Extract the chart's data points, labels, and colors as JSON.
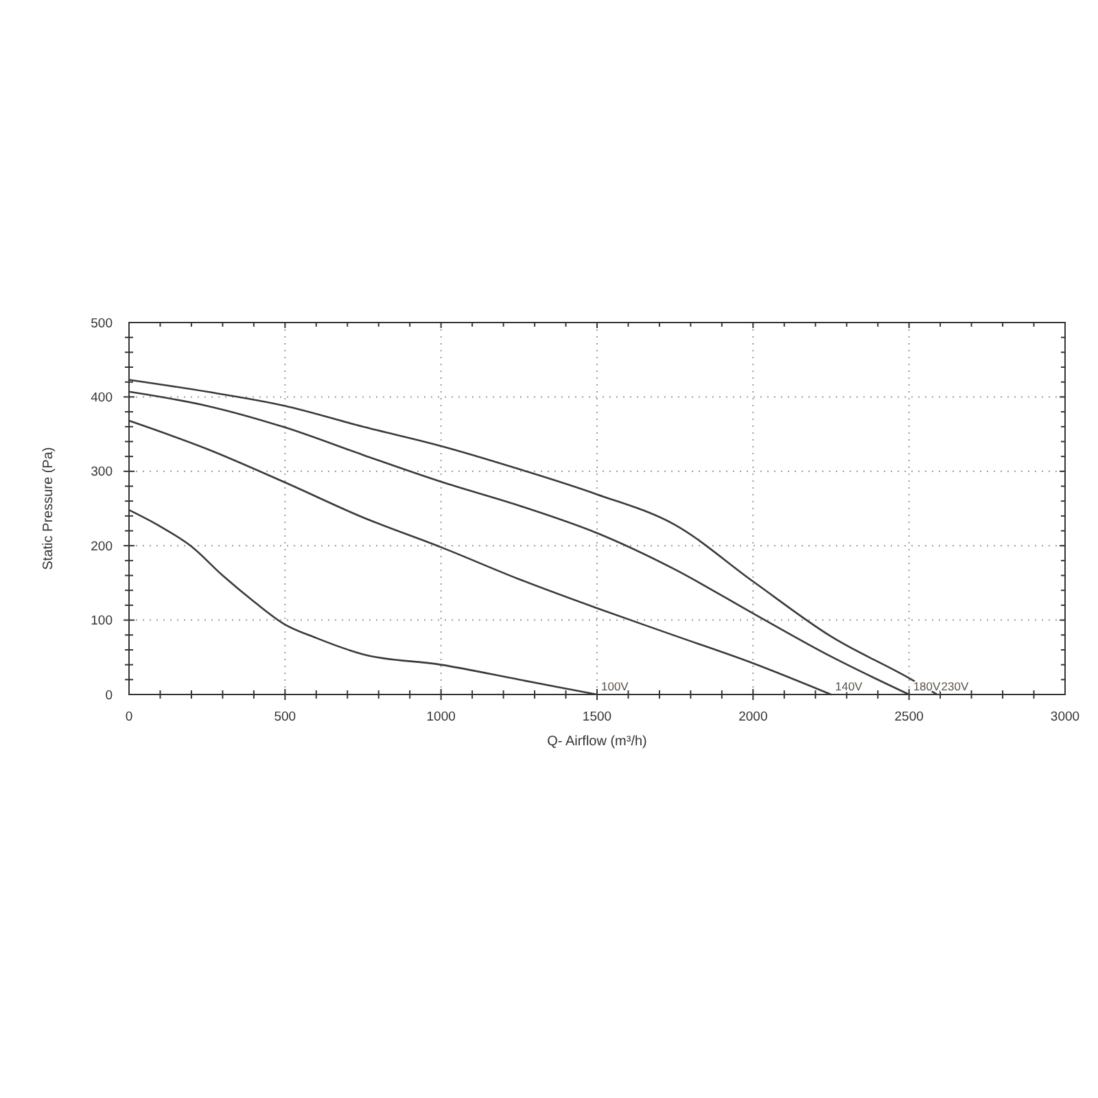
{
  "chart_data": {
    "type": "line",
    "xlabel": "Q- Airflow (m³/h)",
    "ylabel": "Static Pressure (Pa)",
    "xlim": [
      0,
      3000
    ],
    "ylim": [
      0,
      500
    ],
    "xticks": [
      0,
      {
        "value": 100,
        "label": null
      },
      {
        "value": 200,
        "label": null
      },
      {
        "value": 300,
        "label": null
      },
      {
        "value": 400,
        "label": null
      },
      500,
      {
        "value": 600,
        "label": null
      },
      {
        "value": 700,
        "label": null
      },
      {
        "value": 800,
        "label": null
      },
      {
        "value": 900,
        "label": null
      },
      1000,
      {
        "value": 1100,
        "label": null
      },
      {
        "value": 1200,
        "label": null
      },
      {
        "value": 1300,
        "label": null
      },
      {
        "value": 1400,
        "label": null
      },
      1500,
      {
        "value": 1600,
        "label": null
      },
      {
        "value": 1700,
        "label": null
      },
      {
        "value": 1800,
        "label": null
      },
      {
        "value": 1900,
        "label": null
      },
      2000,
      {
        "value": 2100,
        "label": null
      },
      {
        "value": 2200,
        "label": null
      },
      {
        "value": 2300,
        "label": null
      },
      {
        "value": 2400,
        "label": null
      },
      2500,
      {
        "value": 2600,
        "label": null
      },
      {
        "value": 2700,
        "label": null
      },
      {
        "value": 2800,
        "label": null
      },
      {
        "value": 2900,
        "label": null
      },
      3000
    ],
    "yticks": [
      0,
      {
        "value": 20,
        "label": null
      },
      {
        "value": 40,
        "label": null
      },
      {
        "value": 60,
        "label": null
      },
      {
        "value": 80,
        "label": null
      },
      100,
      {
        "value": 120,
        "label": null
      },
      {
        "value": 140,
        "label": null
      },
      {
        "value": 160,
        "label": null
      },
      {
        "value": 180,
        "label": null
      },
      200,
      {
        "value": 220,
        "label": null
      },
      {
        "value": 240,
        "label": null
      },
      {
        "value": 260,
        "label": null
      },
      {
        "value": 280,
        "label": null
      },
      300,
      {
        "value": 320,
        "label": null
      },
      {
        "value": 340,
        "label": null
      },
      {
        "value": 360,
        "label": null
      },
      {
        "value": 380,
        "label": null
      },
      400,
      {
        "value": 420,
        "label": null
      },
      {
        "value": 440,
        "label": null
      },
      {
        "value": 460,
        "label": null
      },
      {
        "value": 480,
        "label": null
      },
      500
    ],
    "grid": true,
    "line_style": "solid",
    "series": [
      {
        "name": "230V",
        "color": "#3a3a3a",
        "x": [
          0,
          250,
          500,
          750,
          1000,
          1250,
          1500,
          1750,
          2000,
          2250,
          2500,
          2590
        ],
        "values": [
          423,
          407,
          388,
          360,
          334,
          303,
          269,
          228,
          152,
          78,
          22,
          0
        ]
      },
      {
        "name": "180V",
        "color": "#3a3a3a",
        "x": [
          0,
          250,
          500,
          750,
          1000,
          1250,
          1500,
          1750,
          2000,
          2250,
          2500
        ],
        "values": [
          407,
          388,
          359,
          322,
          286,
          254,
          217,
          168,
          109,
          51,
          0
        ]
      },
      {
        "name": "140V",
        "color": "#3a3a3a",
        "x": [
          0,
          250,
          500,
          750,
          1000,
          1250,
          1500,
          1750,
          2000,
          2250
        ],
        "values": [
          368,
          330,
          285,
          238,
          198,
          155,
          116,
          79,
          42,
          0
        ]
      },
      {
        "name": "100V",
        "color": "#3a3a3a",
        "x": [
          0,
          100,
          200,
          300,
          400,
          500,
          600,
          750,
          1000,
          1250,
          1500
        ],
        "values": [
          248,
          226,
          199,
          160,
          125,
          94,
          76,
          54,
          40,
          20,
          0
        ]
      }
    ]
  }
}
